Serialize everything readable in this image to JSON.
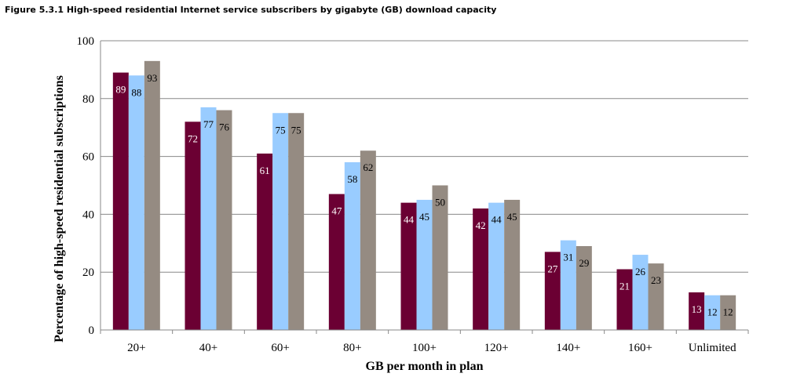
{
  "figure_title": "Figure 5.3.1 High-speed residential Internet service subscribers by gigabyte (GB) download capacity",
  "chart_data": {
    "type": "bar",
    "title": "",
    "xlabel": "GB per month in plan",
    "ylabel": "Percentage of high-speed residential subscriptions",
    "ylim": [
      0,
      100
    ],
    "yticks": [
      0,
      20,
      40,
      60,
      80,
      100
    ],
    "grid": true,
    "legend": "none",
    "categories": [
      "20+",
      "40+",
      "60+",
      "80+",
      "100+",
      "120+",
      "140+",
      "160+",
      "Unlimited"
    ],
    "series": [
      {
        "values": [
          89,
          72,
          61,
          47,
          44,
          42,
          27,
          21,
          13
        ],
        "color": "#6b0033"
      },
      {
        "values": [
          88,
          77,
          75,
          58,
          45,
          44,
          31,
          26,
          12
        ],
        "color": "#99ccff"
      },
      {
        "values": [
          93,
          76,
          75,
          62,
          50,
          45,
          29,
          23,
          12
        ],
        "color": "#958b82"
      }
    ],
    "label_colors": [
      "#ffffff",
      "#000000",
      "#000000"
    ]
  }
}
